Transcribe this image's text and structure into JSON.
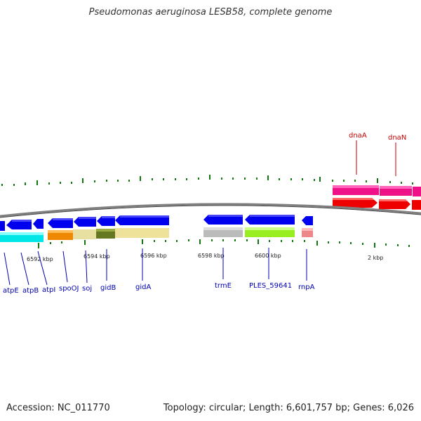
{
  "title": "Pseudomonas aeruginosa LESB58, complete genome",
  "footer": {
    "accession": "Accession: NC_011770",
    "topology": "Topology: circular; Length: 6,601,757 bp; Genes: 6,026"
  },
  "colors": {
    "backbone": "#808080",
    "gene_arrow_blue": "#0000ee",
    "gene_arrow_red": "#ee0000",
    "gene_arrow_magenta": "#ee1188",
    "tick_green": "#117711",
    "label_blue": "#0000b0",
    "label_red": "#cc0000"
  },
  "scale_labels": [
    "6592 kbp",
    "6594 kbp",
    "6596 kbp",
    "6598 kbp",
    "6600 kbp",
    "2 kbp"
  ],
  "genes_lower": [
    "atpE",
    "atpB",
    "atpI",
    "spoOJ",
    "soj",
    "gidB",
    "gidA",
    "trmE",
    "PLES_59641",
    "rnpA"
  ],
  "genes_upper": [
    "dnaA",
    "dnaN"
  ]
}
